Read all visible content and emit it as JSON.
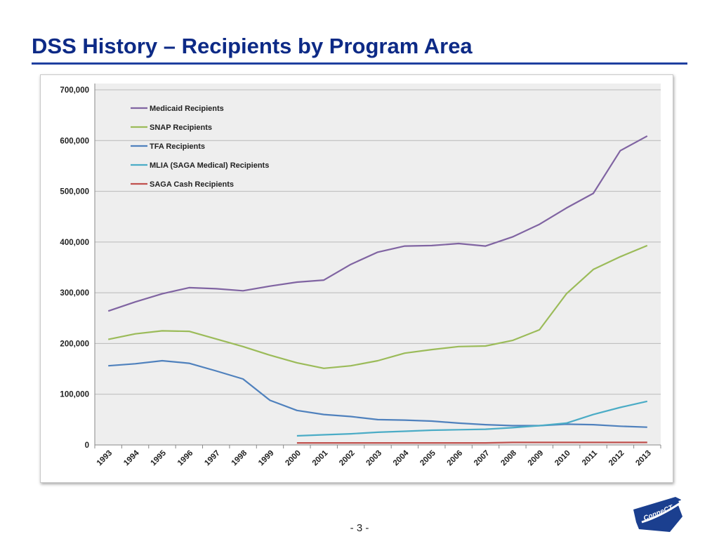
{
  "slide": {
    "title": "DSS History – Recipients by Program Area",
    "page_number": "- 3 -",
    "logo_text": "ConneCT"
  },
  "colors": {
    "title": "#0d2a86",
    "rule": "#1f3fa0",
    "plot_background": "#eeeeee"
  },
  "chart_data": {
    "type": "line",
    "title": "",
    "xlabel": "",
    "ylabel": "",
    "ylim": [
      0,
      700000
    ],
    "y_ticks": [
      0,
      100000,
      200000,
      300000,
      400000,
      500000,
      600000,
      700000
    ],
    "y_tick_labels": [
      "0",
      "100,000",
      "200,000",
      "300,000",
      "400,000",
      "500,000",
      "600,000",
      "700,000"
    ],
    "grid": true,
    "legend_position": "top-left",
    "categories": [
      "1993",
      "1994",
      "1995",
      "1996",
      "1997",
      "1998",
      "1999",
      "2000",
      "2001",
      "2002",
      "2003",
      "2004",
      "2005",
      "2006",
      "2007",
      "2008",
      "2009",
      "2010",
      "2011",
      "2012",
      "2013"
    ],
    "series": [
      {
        "name": "Medicaid Recipients",
        "color": "#8064a2",
        "values": [
          264000,
          282000,
          298000,
          310000,
          308000,
          304000,
          313000,
          321000,
          325000,
          356000,
          380000,
          392000,
          393000,
          397000,
          392000,
          410000,
          435000,
          467000,
          496000,
          580000,
          609000
        ]
      },
      {
        "name": "SNAP Recipients",
        "color": "#9bbb59",
        "values": [
          208000,
          219000,
          225000,
          224000,
          209000,
          194000,
          177000,
          162000,
          151000,
          156000,
          166000,
          181000,
          188000,
          194000,
          195000,
          206000,
          227000,
          298000,
          346000,
          371000,
          393000
        ]
      },
      {
        "name": "TFA Recipients",
        "color": "#4f81bd",
        "values": [
          156000,
          160000,
          166000,
          161000,
          146000,
          130000,
          88000,
          68000,
          60000,
          56000,
          50000,
          49000,
          47000,
          43000,
          40000,
          38000,
          38000,
          41000,
          40000,
          37000,
          35000
        ]
      },
      {
        "name": "MLIA (SAGA Medical) Recipients",
        "color": "#4bacc6",
        "values": [
          null,
          null,
          null,
          null,
          null,
          null,
          null,
          18000,
          20000,
          22000,
          25000,
          27000,
          29000,
          30000,
          31000,
          34000,
          38000,
          43000,
          60000,
          74000,
          86000
        ]
      },
      {
        "name": "SAGA Cash Recipients",
        "color": "#c0504d",
        "values": [
          null,
          null,
          null,
          null,
          null,
          null,
          null,
          4000,
          4000,
          4000,
          4000,
          4000,
          4000,
          4000,
          4000,
          5000,
          5000,
          5000,
          5000,
          5000,
          5000
        ]
      }
    ]
  }
}
